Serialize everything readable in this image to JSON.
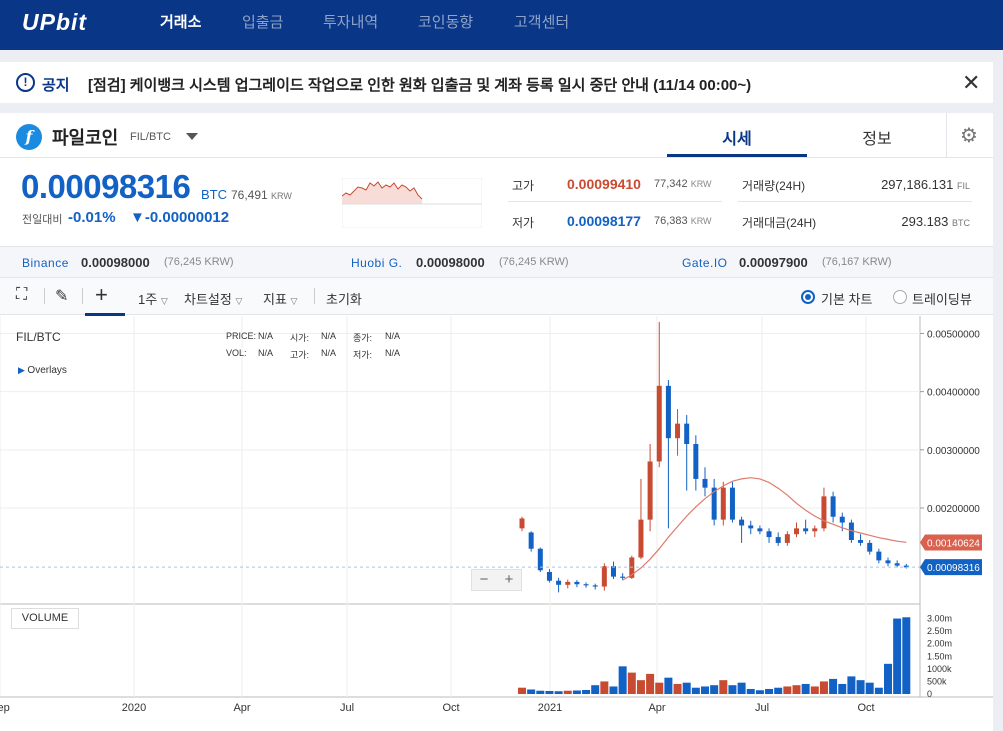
{
  "header": {
    "logo": "UPbit",
    "nav": [
      {
        "label": "거래소",
        "active": true
      },
      {
        "label": "입출금",
        "active": false
      },
      {
        "label": "투자내역",
        "active": false
      },
      {
        "label": "코인동향",
        "active": false
      },
      {
        "label": "고객센터",
        "active": false
      }
    ]
  },
  "notice": {
    "icon": "!",
    "tag": "공지",
    "text": "[점검] 케이뱅크 시스템 업그레이드 작업으로 인한 원화 입출금 및 계좌 등록 일시 중단 안내 (11/14 00:00~)",
    "close": "✕"
  },
  "coin": {
    "icon_glyph": "f",
    "name": "파일코인",
    "pair": "FIL/BTC",
    "tabs": [
      "시세",
      "정보"
    ],
    "settings_icon": "⚙"
  },
  "ticker": {
    "price": "0.00098316",
    "unit": "BTC",
    "krw": "76,491",
    "krw_unit": "KRW",
    "change_label": "전일대비",
    "change_rate": "-0.01%",
    "change_value": "▼-0.00000012",
    "high_label": "고가",
    "high": "0.00099410",
    "high_krw": "77,342",
    "low_label": "저가",
    "low": "0.00098177",
    "low_krw": "76,383",
    "krw_unit_small": "KRW",
    "volume_label": "거래량(24H)",
    "volume": "297,186.131",
    "volume_unit": "FIL",
    "amount_label": "거래대금(24H)",
    "amount": "293.183",
    "amount_unit": "BTC",
    "colors": {
      "up": "#c84a31",
      "down": "#1261c4"
    }
  },
  "exchanges": [
    {
      "name": "Binance",
      "price": "0.00098000",
      "krw": "(76,245 KRW)"
    },
    {
      "name": "Huobi G.",
      "price": "0.00098000",
      "krw": "(76,245 KRW)"
    },
    {
      "name": "Gate.IO",
      "price": "0.00097900",
      "krw": "(76,167 KRW)"
    }
  ],
  "toolbar": {
    "fullscreen_icon": "⛶",
    "draw_icon": "✎",
    "crosshair_icon": "+",
    "interval": "1주",
    "chart_settings": "차트설정",
    "indicators": "지표",
    "reset": "초기화",
    "radio_basic": "기본 차트",
    "radio_tv": "트레이딩뷰"
  },
  "chart_info": {
    "symbol": "FIL/BTC",
    "overlays": "Overlays",
    "price_label": "PRICE:",
    "vol_label": "VOL:",
    "open_label": "시가:",
    "high_label": "고가:",
    "close_label": "종가:",
    "low_label": "저가:",
    "na": "N/A",
    "volume_button": "VOLUME",
    "zoom_minus": "−",
    "zoom_plus": "+"
  },
  "chart_data": {
    "type": "candlestick",
    "pair": "FIL/BTC",
    "interval": "1 week",
    "y_ticks": [
      "0.00500000",
      "0.00400000",
      "0.00300000",
      "0.00200000"
    ],
    "ylim": [
      0.00035,
      0.0053
    ],
    "x_ticks": [
      "Sep",
      "2020",
      "Apr",
      "Jul",
      "Oct",
      "2021",
      "Apr",
      "Jul",
      "Oct"
    ],
    "ma_label": "0.00140624",
    "last_price_label": "0.00098316",
    "volume_ticks": [
      "3.00m",
      "2.50m",
      "2.00m",
      "1.50m",
      "1000k",
      "500k",
      "0"
    ],
    "candles": [
      {
        "o": 0.00165,
        "c": 0.00182,
        "h": 0.00185,
        "l": 0.0016
      },
      {
        "o": 0.00158,
        "c": 0.0013,
        "h": 0.0016,
        "l": 0.00125
      },
      {
        "o": 0.0013,
        "c": 0.00093,
        "h": 0.00132,
        "l": 0.0009
      },
      {
        "o": 0.0009,
        "c": 0.00075,
        "h": 0.00095,
        "l": 0.00072
      },
      {
        "o": 0.00075,
        "c": 0.00068,
        "h": 0.0008,
        "l": 0.00055
      },
      {
        "o": 0.00068,
        "c": 0.00073,
        "h": 0.00077,
        "l": 0.00062
      },
      {
        "o": 0.00073,
        "c": 0.00069,
        "h": 0.00076,
        "l": 0.00064
      },
      {
        "o": 0.00069,
        "c": 0.00067,
        "h": 0.00072,
        "l": 0.00063
      },
      {
        "o": 0.00067,
        "c": 0.00065,
        "h": 0.0007,
        "l": 0.0006
      },
      {
        "o": 0.00065,
        "c": 0.001,
        "h": 0.00105,
        "l": 0.00058
      },
      {
        "o": 0.001,
        "c": 0.00082,
        "h": 0.00108,
        "l": 0.00078
      },
      {
        "o": 0.00082,
        "c": 0.0008,
        "h": 0.00088,
        "l": 0.00076
      },
      {
        "o": 0.0008,
        "c": 0.00115,
        "h": 0.00118,
        "l": 0.00078
      },
      {
        "o": 0.00115,
        "c": 0.0018,
        "h": 0.0025,
        "l": 0.00112
      },
      {
        "o": 0.0018,
        "c": 0.0028,
        "h": 0.0031,
        "l": 0.0016
      },
      {
        "o": 0.0028,
        "c": 0.0041,
        "h": 0.0052,
        "l": 0.0027
      },
      {
        "o": 0.0041,
        "c": 0.0032,
        "h": 0.0042,
        "l": 0.00165
      },
      {
        "o": 0.0032,
        "c": 0.00345,
        "h": 0.0037,
        "l": 0.0029
      },
      {
        "o": 0.00345,
        "c": 0.0031,
        "h": 0.0036,
        "l": 0.0023
      },
      {
        "o": 0.0031,
        "c": 0.0025,
        "h": 0.00325,
        "l": 0.0023
      },
      {
        "o": 0.0025,
        "c": 0.00235,
        "h": 0.0027,
        "l": 0.0022
      },
      {
        "o": 0.00235,
        "c": 0.0018,
        "h": 0.0025,
        "l": 0.0017
      },
      {
        "o": 0.0018,
        "c": 0.00235,
        "h": 0.00245,
        "l": 0.0017
      },
      {
        "o": 0.00235,
        "c": 0.0018,
        "h": 0.00245,
        "l": 0.00175
      },
      {
        "o": 0.0018,
        "c": 0.0017,
        "h": 0.00185,
        "l": 0.0014
      },
      {
        "o": 0.0017,
        "c": 0.00165,
        "h": 0.00178,
        "l": 0.00155
      },
      {
        "o": 0.00165,
        "c": 0.0016,
        "h": 0.0017,
        "l": 0.00155
      },
      {
        "o": 0.0016,
        "c": 0.0015,
        "h": 0.00165,
        "l": 0.0014
      },
      {
        "o": 0.0015,
        "c": 0.0014,
        "h": 0.00158,
        "l": 0.00135
      },
      {
        "o": 0.0014,
        "c": 0.00155,
        "h": 0.0016,
        "l": 0.00135
      },
      {
        "o": 0.00155,
        "c": 0.00165,
        "h": 0.00175,
        "l": 0.0015
      },
      {
        "o": 0.00165,
        "c": 0.0016,
        "h": 0.0018,
        "l": 0.00155
      },
      {
        "o": 0.0016,
        "c": 0.00165,
        "h": 0.0017,
        "l": 0.0015
      },
      {
        "o": 0.00165,
        "c": 0.0022,
        "h": 0.00235,
        "l": 0.0016
      },
      {
        "o": 0.0022,
        "c": 0.00185,
        "h": 0.00228,
        "l": 0.00175
      },
      {
        "o": 0.00185,
        "c": 0.00175,
        "h": 0.00192,
        "l": 0.0016
      },
      {
        "o": 0.00175,
        "c": 0.00145,
        "h": 0.0018,
        "l": 0.0014
      },
      {
        "o": 0.00145,
        "c": 0.0014,
        "h": 0.00155,
        "l": 0.00135
      },
      {
        "o": 0.0014,
        "c": 0.00125,
        "h": 0.00145,
        "l": 0.0012
      },
      {
        "o": 0.00125,
        "c": 0.0011,
        "h": 0.0013,
        "l": 0.00105
      },
      {
        "o": 0.0011,
        "c": 0.00105,
        "h": 0.00115,
        "l": 0.001
      },
      {
        "o": 0.00105,
        "c": 0.00101,
        "h": 0.0011,
        "l": 0.00098
      },
      {
        "o": 0.00101,
        "c": 0.00098,
        "h": 0.00104,
        "l": 0.00096
      }
    ],
    "volumes_k": [
      250,
      180,
      130,
      120,
      110,
      130,
      140,
      160,
      350,
      500,
      300,
      1100,
      850,
      550,
      800,
      450,
      650,
      400,
      450,
      250,
      300,
      350,
      550,
      350,
      450,
      200,
      150,
      200,
      250,
      300,
      350,
      400,
      300,
      500,
      600,
      400,
      700,
      550,
      450,
      250,
      1200,
      3000,
      3050
    ],
    "ma": [
      null,
      null,
      null,
      null,
      null,
      null,
      null,
      null,
      null,
      null,
      null,
      0.00076,
      0.00085,
      0.00097,
      0.00112,
      0.0013,
      0.0015,
      0.00168,
      0.00186,
      0.00202,
      0.00216,
      0.00228,
      0.00238,
      0.00246,
      0.0025,
      0.00252,
      0.0025,
      0.00244,
      0.00234,
      0.00222,
      0.00208,
      0.00196,
      0.00186,
      0.00178,
      0.00172,
      0.00166,
      0.00161,
      0.00157,
      0.00153,
      0.00149,
      0.00146,
      0.00143,
      0.00141
    ]
  }
}
